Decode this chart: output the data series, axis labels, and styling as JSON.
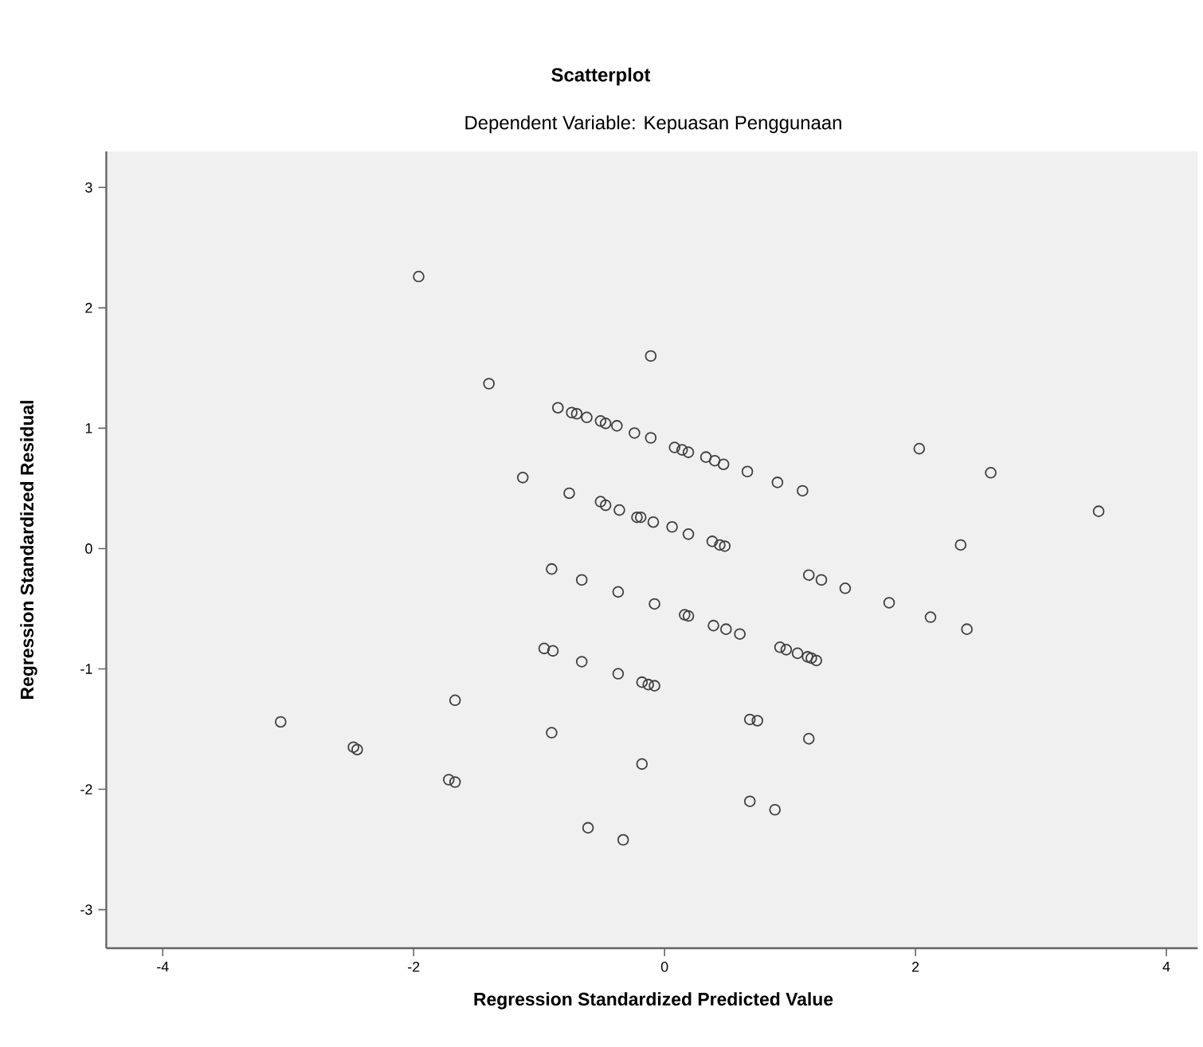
{
  "chart_data": {
    "type": "scatter",
    "title": "Scatterplot",
    "subtitle": "Dependent Variable: Kepuasan Penggunaan",
    "xlabel": "Regression Standardized Predicted Value",
    "ylabel": "Regression Standardized Residual",
    "xlim": [
      -4.45,
      4.25
    ],
    "ylim": [
      -3.32,
      3.3
    ],
    "xticks": [
      -4,
      -2,
      0,
      2,
      4
    ],
    "yticks": [
      -3,
      -2,
      -1,
      0,
      1,
      2,
      3
    ],
    "marker": "circle",
    "series": [
      {
        "color": "#404040",
        "x": [
          -3.06,
          -2.48,
          -2.45,
          -1.67,
          -1.72,
          -1.67,
          -0.9,
          -0.66,
          -0.37,
          -0.96,
          -0.89,
          -0.66,
          -0.37,
          -0.9,
          -0.61,
          -0.33,
          -1.96,
          -1.4,
          -1.13,
          -0.76,
          -0.85,
          -0.74,
          -0.7,
          -0.62,
          -0.51,
          -0.47,
          -0.38,
          -0.24,
          -0.51,
          -0.47,
          -0.36,
          -0.22,
          -0.11,
          -0.11,
          0.08,
          0.14,
          0.19,
          0.33,
          0.4,
          0.47,
          0.66,
          0.9,
          1.1,
          2.03,
          2.6,
          3.46,
          2.36,
          -0.19,
          -0.09,
          0.06,
          0.19,
          0.38,
          0.44,
          0.48,
          1.15,
          1.25,
          1.44,
          1.79,
          2.12,
          2.41,
          -0.08,
          0.16,
          0.19,
          0.39,
          0.49,
          0.6,
          0.92,
          0.97,
          1.06,
          1.14,
          1.17,
          1.21,
          -0.18,
          -0.13,
          -0.08,
          0.68,
          0.74,
          1.15,
          -0.18,
          0.68,
          0.88
        ],
        "values": [
          -1.44,
          -1.65,
          -1.67,
          -1.26,
          -1.92,
          -1.94,
          -0.17,
          -0.26,
          -0.36,
          -0.83,
          -0.85,
          -0.94,
          -1.04,
          -1.53,
          -2.32,
          -2.42,
          2.26,
          1.37,
          0.59,
          0.46,
          1.17,
          1.13,
          1.12,
          1.09,
          1.06,
          1.04,
          1.02,
          0.96,
          0.39,
          0.36,
          0.32,
          0.26,
          1.6,
          0.92,
          0.84,
          0.82,
          0.8,
          0.76,
          0.73,
          0.7,
          0.64,
          0.55,
          0.48,
          0.83,
          0.63,
          0.31,
          0.03,
          0.26,
          0.22,
          0.18,
          0.12,
          0.06,
          0.03,
          0.02,
          -0.22,
          -0.26,
          -0.33,
          -0.45,
          -0.57,
          -0.67,
          -0.46,
          -0.55,
          -0.56,
          -0.64,
          -0.67,
          -0.71,
          -0.82,
          -0.84,
          -0.87,
          -0.9,
          -0.91,
          -0.93,
          -1.11,
          -1.13,
          -1.14,
          -1.42,
          -1.43,
          -1.58,
          -1.79,
          -2.1,
          -2.17
        ]
      }
    ]
  }
}
